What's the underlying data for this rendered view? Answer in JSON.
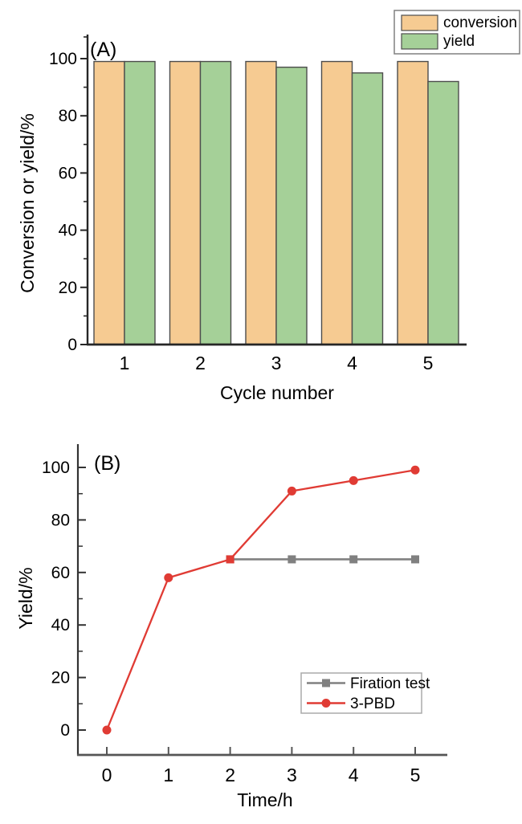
{
  "figure": {
    "panels": [
      {
        "corner_label": "(A)"
      },
      {
        "corner_label": "(B)"
      }
    ]
  },
  "colors": {
    "conversion_fill": "#F6CB92",
    "yield_fill": "#A5D098",
    "bar_edge": "#4d4d4d",
    "red_series": "#E03B34",
    "gray_series": "#808080",
    "axis": "#262626",
    "legend_border": "#808080"
  },
  "chart_data": [
    {
      "type": "bar",
      "title": "(A)",
      "categories": [
        "1",
        "2",
        "3",
        "4",
        "5"
      ],
      "series": [
        {
          "name": "conversion",
          "color": "#F6CB92",
          "values": [
            99,
            99,
            99,
            99,
            99
          ]
        },
        {
          "name": "yield",
          "color": "#A5D098",
          "values": [
            99,
            99,
            97,
            95,
            92
          ]
        }
      ],
      "xlabel": "Cycle number",
      "ylabel": "Conversion or yield/%",
      "ylim": [
        0,
        108
      ],
      "yticks": [
        "0",
        "20",
        "40",
        "60",
        "80",
        "100"
      ],
      "ytick_values": [
        0,
        20,
        40,
        60,
        80,
        100
      ],
      "grid": false,
      "legend_position": "top-right"
    },
    {
      "type": "line",
      "title": "(B)",
      "series": [
        {
          "name": "Firation test",
          "color": "#808080",
          "marker": "square",
          "x": [
            2,
            3,
            4,
            5
          ],
          "values": [
            65,
            65,
            65,
            65
          ]
        },
        {
          "name": "3-PBD",
          "color": "#E03B34",
          "marker": "circle",
          "x": [
            0,
            1,
            2,
            3,
            4,
            5
          ],
          "values": [
            0,
            58,
            65,
            91,
            95,
            99
          ]
        }
      ],
      "xlabel": "Time/h",
      "ylabel": "Yield/%",
      "xlim": [
        -0.5,
        5.5
      ],
      "ylim": [
        -9,
        109
      ],
      "xticks": [
        "0",
        "1",
        "2",
        "3",
        "4",
        "5"
      ],
      "xtick_values": [
        0,
        1,
        2,
        3,
        4,
        5
      ],
      "yticks": [
        "0",
        "20",
        "40",
        "60",
        "80",
        "100"
      ],
      "ytick_values": [
        0,
        20,
        40,
        60,
        80,
        100
      ],
      "grid": false,
      "legend_position": "inside-right-middle"
    }
  ]
}
